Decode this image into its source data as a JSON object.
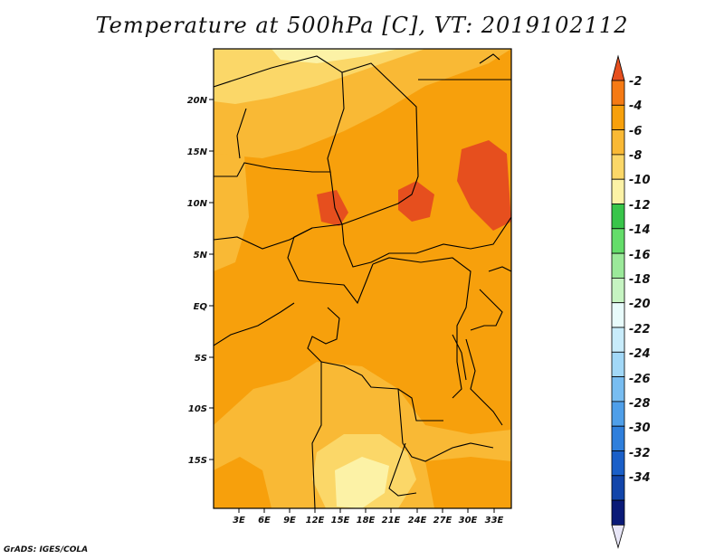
{
  "title": "Temperature at 500hPa [C], VT: 2019102112",
  "credit": "GrADS: IGES/COLA",
  "map": {
    "lat_ticks": [
      "20N",
      "15N",
      "10N",
      "5N",
      "EQ",
      "5S",
      "10S",
      "15S"
    ],
    "lon_ticks": [
      "3E",
      "6E",
      "9E",
      "12E",
      "15E",
      "18E",
      "21E",
      "24E",
      "27E",
      "30E",
      "33E"
    ],
    "units": "C"
  },
  "colorbar": {
    "labels": [
      "-2",
      "-4",
      "-6",
      "-8",
      "-10",
      "-12",
      "-14",
      "-16",
      "-18",
      "-20",
      "-22",
      "-24",
      "-26",
      "-28",
      "-30",
      "-32",
      "-34"
    ],
    "colors": [
      "#e64f1e",
      "#f57a14",
      "#f7a00c",
      "#f9b935",
      "#fbd768",
      "#fcf2a6",
      "#38c54a",
      "#64dd6a",
      "#9be99a",
      "#c6f4c2",
      "#e8fbfb",
      "#c8ecfb",
      "#a2d8f7",
      "#78bdf1",
      "#4f9fe9",
      "#2f7fdc",
      "#1a5fc8",
      "#1245aa",
      "#0a1a77",
      "#e8e6f7"
    ]
  }
}
